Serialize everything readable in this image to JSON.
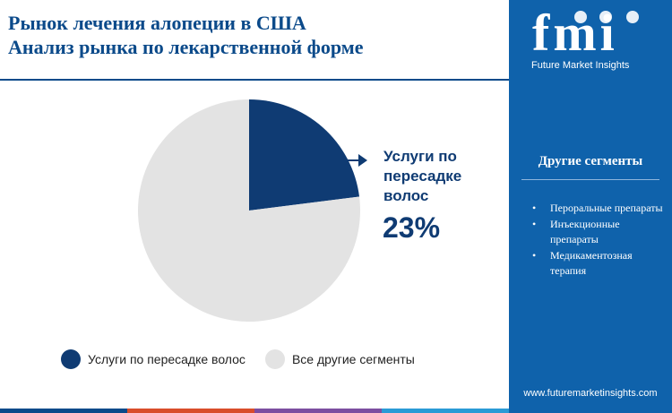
{
  "title": {
    "line1": "Рынок лечения алопеции в США",
    "line2": "Анализ рынка по лекарственной форме"
  },
  "chart_data": {
    "type": "pie",
    "slices": [
      {
        "label": "Услуги по пересадке волос",
        "value": 23,
        "color": "#0f3b73"
      },
      {
        "label": "Все другие сегменты",
        "value": 77,
        "color": "#e3e3e3"
      }
    ],
    "callout": {
      "label": "Услуги по пересадке волос",
      "value_text": "23%"
    },
    "legend_position": "bottom"
  },
  "sidebar": {
    "logo_text": "fmi",
    "logo_subtitle": "Future Market Insights",
    "title": "Другие сегменты",
    "items": [
      "Пероральные препараты",
      "Инъекционные препараты",
      "Медикаментозная терапия"
    ],
    "website": "www.futuremarketinsights.com"
  },
  "colors": {
    "title": "#0b4a8a",
    "sidebar_bg": "#0f62ab",
    "bottom_bar": [
      "#0b4a8a",
      "#d94d2a",
      "#7c4ea0",
      "#2a9bd6"
    ]
  }
}
